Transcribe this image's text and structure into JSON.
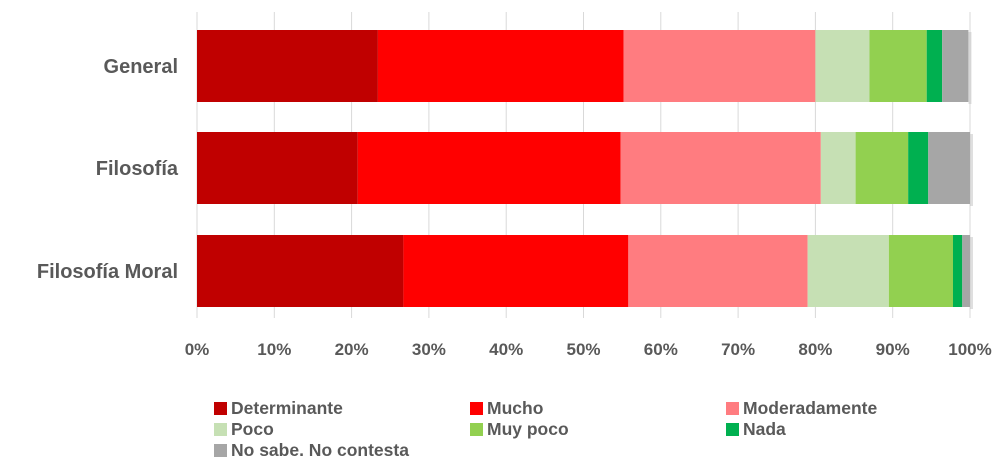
{
  "chart_data": {
    "type": "bar",
    "orientation": "horizontal",
    "stacked": "percent",
    "categories": [
      "General",
      "Filosofía",
      "Filosofía Moral"
    ],
    "series": [
      {
        "name": "Determinante",
        "color": "#c00000",
        "values": [
          23.4,
          20.8,
          26.7
        ]
      },
      {
        "name": "Mucho",
        "color": "#ff0000",
        "values": [
          31.8,
          34.0,
          29.1
        ]
      },
      {
        "name": "Moderadamente",
        "color": "#ff7c80",
        "values": [
          24.8,
          25.9,
          23.2
        ]
      },
      {
        "name": "Poco",
        "color": "#c6e0b4",
        "values": [
          7.0,
          4.5,
          10.5
        ]
      },
      {
        "name": "Muy poco",
        "color": "#92d050",
        "values": [
          7.4,
          6.8,
          8.3
        ]
      },
      {
        "name": "Nada",
        "color": "#00b050",
        "values": [
          2.0,
          2.6,
          1.2
        ]
      },
      {
        "name": "No sabe. No contesta",
        "color": "#a6a6a6",
        "values": [
          3.4,
          5.4,
          1.0
        ]
      }
    ],
    "x_ticks": [
      "0%",
      "10%",
      "20%",
      "30%",
      "40%",
      "50%",
      "60%",
      "70%",
      "80%",
      "90%",
      "100%"
    ],
    "xlim": [
      0,
      100
    ],
    "grid": "vertical",
    "legend_position": "bottom"
  }
}
